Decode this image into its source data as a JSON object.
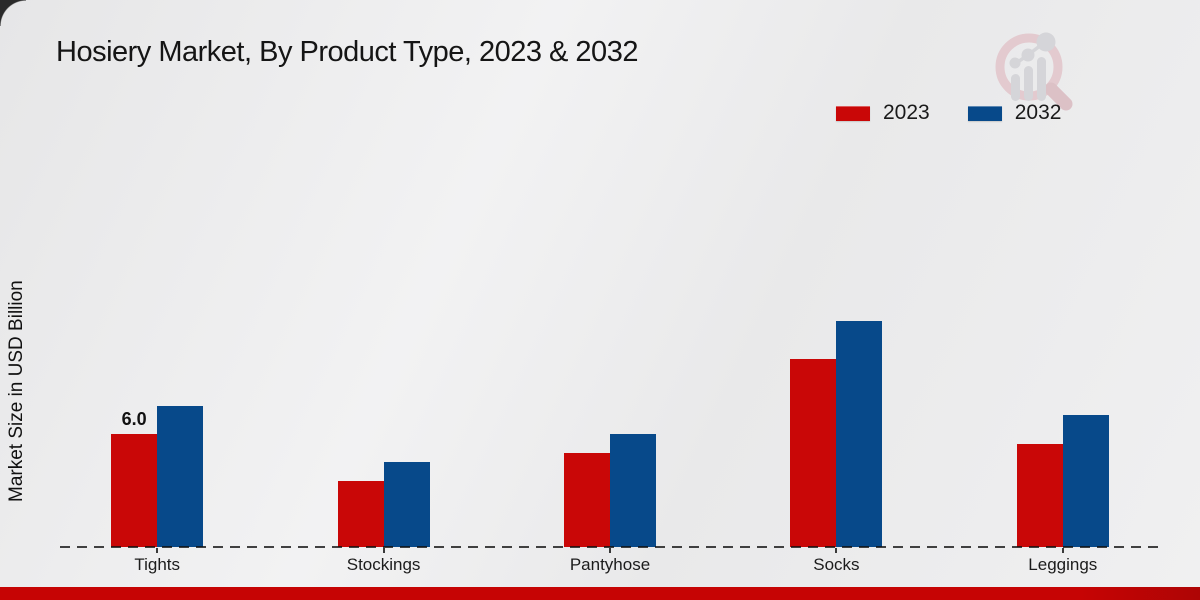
{
  "page": {
    "title": "Hosiery Market, By Product Type, 2023 & 2032",
    "ylabel": "Market Size in USD Billion",
    "background_color": "#ececed",
    "footer_strip_color": "#c60404",
    "baseline_color": "#1f1f1f"
  },
  "logo": {
    "name": "market-research-magnifier-logo",
    "ring_color": "#e3c9ce",
    "bars_color": "#d4d4d8"
  },
  "chart_data": {
    "type": "bar",
    "title": "Hosiery Market, By Product Type, 2023 & 2032",
    "xlabel": "",
    "ylabel": "Market Size in USD Billion",
    "categories": [
      "Tights",
      "Stockings",
      "Pantyhose",
      "Socks",
      "Leggings"
    ],
    "series": [
      {
        "name": "2023",
        "color": "#c90707",
        "values": [
          6.0,
          3.5,
          5.0,
          10.0,
          5.5
        ],
        "labels": [
          "6.0",
          "",
          "",
          "",
          ""
        ]
      },
      {
        "name": "2032",
        "color": "#07498a",
        "values": [
          7.5,
          4.5,
          6.0,
          12.0,
          7.0
        ],
        "labels": [
          "",
          "",
          "",
          "",
          ""
        ]
      }
    ],
    "ylim": [
      0,
      13.5
    ],
    "grid": false,
    "legend_position": "top-right",
    "baseline_style": "dashed",
    "value_axis_ticks_visible": false
  }
}
